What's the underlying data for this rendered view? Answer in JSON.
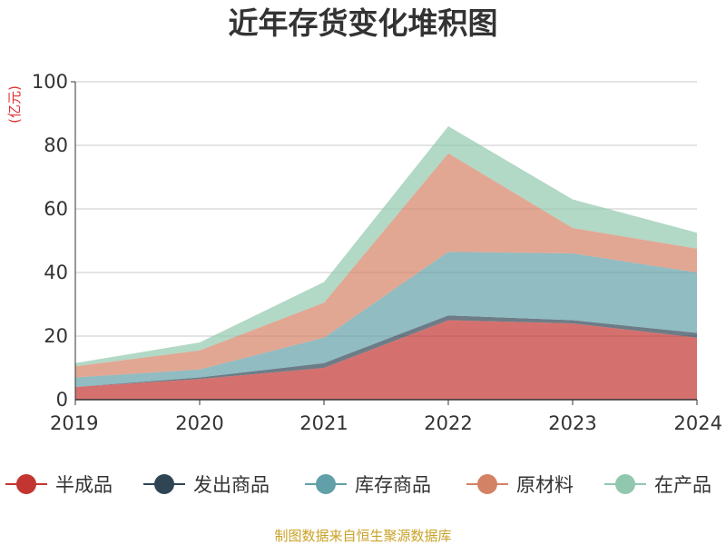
{
  "chart_data": {
    "type": "area",
    "stacked": true,
    "title": "近年存货变化堆积图",
    "ylabel": "(亿元)",
    "xlabel": "",
    "categories": [
      "2019",
      "2020",
      "2021",
      "2022",
      "2023",
      "2024"
    ],
    "ylim": [
      0,
      100
    ],
    "yticks": [
      "0",
      "20",
      "40",
      "60",
      "80",
      "100"
    ],
    "grid": true,
    "legend_position": "bottom",
    "series": [
      {
        "name": "半成品",
        "color": "#c23531",
        "values": [
          4.0,
          6.5,
          10.0,
          25.0,
          24.0,
          19.5
        ]
      },
      {
        "name": "发出商品",
        "color": "#2f4554",
        "values": [
          0.0,
          0.5,
          1.5,
          1.5,
          1.0,
          1.5
        ]
      },
      {
        "name": "库存商品",
        "color": "#61a0a8",
        "values": [
          3.0,
          2.5,
          8.0,
          20.0,
          21.0,
          19.0
        ]
      },
      {
        "name": "原材料",
        "color": "#d48265",
        "values": [
          3.5,
          6.0,
          11.0,
          31.0,
          8.0,
          7.5
        ]
      },
      {
        "name": "在产品",
        "color": "#91c7ae",
        "values": [
          1.0,
          2.5,
          6.5,
          8.5,
          9.0,
          5.0
        ]
      }
    ],
    "source": "制图数据来自恒生聚源数据库"
  }
}
